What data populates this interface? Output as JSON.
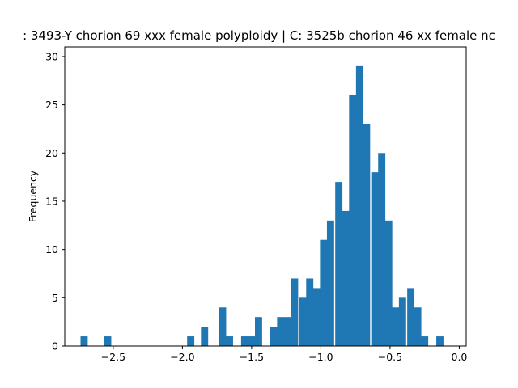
{
  "chart_data": {
    "type": "histogram",
    "title": ": 3493-Y chorion 69 xxx female polyploidy | C: 3525b chorion 46 xx female nc",
    "xlabel": "",
    "ylabel": "Frequency",
    "xlim": [
      -2.85,
      0.05
    ],
    "ylim": [
      0,
      31
    ],
    "bin_width": 0.052,
    "bins": [
      {
        "x": -2.71,
        "count": 1
      },
      {
        "x": -2.54,
        "count": 1
      },
      {
        "x": -1.94,
        "count": 1
      },
      {
        "x": -1.84,
        "count": 2
      },
      {
        "x": -1.71,
        "count": 4
      },
      {
        "x": -1.66,
        "count": 1
      },
      {
        "x": -1.55,
        "count": 1
      },
      {
        "x": -1.5,
        "count": 1
      },
      {
        "x": -1.45,
        "count": 3
      },
      {
        "x": -1.34,
        "count": 2
      },
      {
        "x": -1.29,
        "count": 3
      },
      {
        "x": -1.24,
        "count": 3
      },
      {
        "x": -1.19,
        "count": 7
      },
      {
        "x": -1.13,
        "count": 5
      },
      {
        "x": -1.08,
        "count": 7
      },
      {
        "x": -1.03,
        "count": 6
      },
      {
        "x": -0.98,
        "count": 11
      },
      {
        "x": -0.93,
        "count": 13
      },
      {
        "x": -0.87,
        "count": 17
      },
      {
        "x": -0.82,
        "count": 14
      },
      {
        "x": -0.77,
        "count": 26
      },
      {
        "x": -0.72,
        "count": 29
      },
      {
        "x": -0.67,
        "count": 23
      },
      {
        "x": -0.61,
        "count": 18
      },
      {
        "x": -0.56,
        "count": 20
      },
      {
        "x": -0.51,
        "count": 13
      },
      {
        "x": -0.46,
        "count": 4
      },
      {
        "x": -0.41,
        "count": 5
      },
      {
        "x": -0.35,
        "count": 6
      },
      {
        "x": -0.3,
        "count": 4
      },
      {
        "x": -0.25,
        "count": 1
      },
      {
        "x": -0.14,
        "count": 1
      }
    ],
    "xticks": [
      {
        "value": -2.5,
        "label": "−2.5"
      },
      {
        "value": -2.0,
        "label": "−2.0"
      },
      {
        "value": -1.5,
        "label": "−1.5"
      },
      {
        "value": -1.0,
        "label": "−1.0"
      },
      {
        "value": -0.5,
        "label": "−0.5"
      },
      {
        "value": 0.0,
        "label": "0.0"
      }
    ],
    "yticks": [
      {
        "value": 0,
        "label": "0"
      },
      {
        "value": 5,
        "label": "5"
      },
      {
        "value": 10,
        "label": "10"
      },
      {
        "value": 15,
        "label": "15"
      },
      {
        "value": 20,
        "label": "20"
      },
      {
        "value": 25,
        "label": "25"
      },
      {
        "value": 30,
        "label": "30"
      }
    ],
    "bar_color": "#1f77b4",
    "grid": false,
    "legend": "none"
  }
}
